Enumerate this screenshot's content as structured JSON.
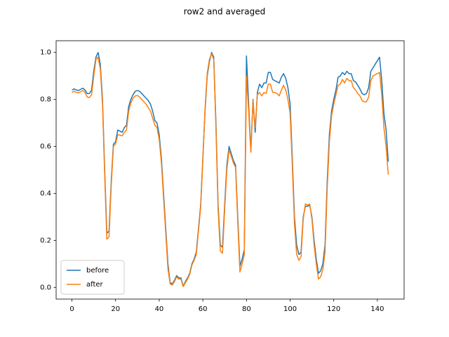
{
  "chart_data": {
    "type": "line",
    "title": "row2 and averaged",
    "x": [
      0,
      1,
      2,
      3,
      4,
      5,
      6,
      7,
      8,
      9,
      10,
      11,
      12,
      13,
      14,
      15,
      16,
      17,
      18,
      19,
      20,
      21,
      22,
      23,
      24,
      25,
      26,
      27,
      28,
      29,
      30,
      31,
      32,
      33,
      34,
      35,
      36,
      37,
      38,
      39,
      40,
      41,
      42,
      43,
      44,
      45,
      46,
      47,
      48,
      49,
      50,
      51,
      52,
      53,
      54,
      55,
      56,
      57,
      58,
      59,
      60,
      61,
      62,
      63,
      64,
      65,
      66,
      67,
      68,
      69,
      70,
      71,
      72,
      73,
      74,
      75,
      76,
      77,
      78,
      79,
      80,
      81,
      82,
      83,
      84,
      85,
      86,
      87,
      88,
      89,
      90,
      91,
      92,
      93,
      94,
      95,
      96,
      97,
      98,
      99,
      100,
      101,
      102,
      103,
      104,
      105,
      106,
      107,
      108,
      109,
      110,
      111,
      112,
      113,
      114,
      115,
      116,
      117,
      118,
      119,
      120,
      121,
      122,
      123,
      124,
      125,
      126,
      127,
      128,
      129,
      130,
      131,
      132,
      133,
      134,
      135,
      136,
      137,
      138,
      139,
      140,
      141,
      142,
      143,
      144,
      145
    ],
    "series": [
      {
        "name": "before",
        "color": "#1f77b4",
        "values": [
          0.84,
          0.845,
          0.84,
          0.838,
          0.843,
          0.848,
          0.84,
          0.825,
          0.825,
          0.84,
          0.92,
          0.98,
          1.0,
          0.95,
          0.8,
          0.5,
          0.23,
          0.24,
          0.45,
          0.61,
          0.62,
          0.67,
          0.665,
          0.66,
          0.68,
          0.69,
          0.77,
          0.8,
          0.82,
          0.835,
          0.838,
          0.835,
          0.825,
          0.815,
          0.805,
          0.795,
          0.78,
          0.75,
          0.71,
          0.7,
          0.65,
          0.55,
          0.4,
          0.25,
          0.1,
          0.02,
          0.015,
          0.03,
          0.05,
          0.04,
          0.04,
          0.005,
          0.025,
          0.04,
          0.06,
          0.1,
          0.12,
          0.15,
          0.25,
          0.35,
          0.55,
          0.75,
          0.9,
          0.96,
          1.0,
          0.98,
          0.7,
          0.35,
          0.18,
          0.17,
          0.35,
          0.52,
          0.6,
          0.57,
          0.54,
          0.52,
          0.3,
          0.09,
          0.12,
          0.16,
          0.985,
          0.78,
          0.58,
          0.8,
          0.66,
          0.83,
          0.865,
          0.85,
          0.87,
          0.87,
          0.915,
          0.915,
          0.885,
          0.88,
          0.875,
          0.87,
          0.895,
          0.91,
          0.89,
          0.85,
          0.78,
          0.55,
          0.3,
          0.18,
          0.14,
          0.15,
          0.3,
          0.345,
          0.345,
          0.35,
          0.3,
          0.2,
          0.12,
          0.06,
          0.07,
          0.1,
          0.18,
          0.45,
          0.65,
          0.75,
          0.8,
          0.84,
          0.895,
          0.9,
          0.915,
          0.905,
          0.92,
          0.91,
          0.91,
          0.88,
          0.875,
          0.86,
          0.845,
          0.825,
          0.82,
          0.825,
          0.85,
          0.92,
          0.935,
          0.95,
          0.965,
          0.98,
          0.88,
          0.74,
          0.67,
          0.535
        ]
      },
      {
        "name": "after",
        "color": "#ff7f0e",
        "values": [
          0.83,
          0.835,
          0.83,
          0.828,
          0.833,
          0.838,
          0.83,
          0.81,
          0.808,
          0.82,
          0.9,
          0.97,
          0.98,
          0.93,
          0.78,
          0.48,
          0.205,
          0.215,
          0.43,
          0.6,
          0.61,
          0.65,
          0.648,
          0.645,
          0.66,
          0.67,
          0.75,
          0.785,
          0.805,
          0.815,
          0.817,
          0.81,
          0.8,
          0.79,
          0.78,
          0.765,
          0.75,
          0.72,
          0.69,
          0.68,
          0.63,
          0.53,
          0.38,
          0.23,
          0.08,
          0.015,
          0.01,
          0.025,
          0.045,
          0.035,
          0.035,
          0.003,
          0.02,
          0.035,
          0.055,
          0.095,
          0.115,
          0.14,
          0.24,
          0.34,
          0.54,
          0.76,
          0.91,
          0.97,
          0.995,
          0.97,
          0.68,
          0.33,
          0.155,
          0.145,
          0.33,
          0.5,
          0.585,
          0.56,
          0.53,
          0.51,
          0.28,
          0.065,
          0.1,
          0.14,
          0.9,
          0.75,
          0.575,
          0.795,
          0.68,
          0.82,
          0.83,
          0.815,
          0.83,
          0.825,
          0.865,
          0.865,
          0.83,
          0.83,
          0.825,
          0.815,
          0.84,
          0.86,
          0.84,
          0.8,
          0.74,
          0.52,
          0.27,
          0.14,
          0.115,
          0.13,
          0.29,
          0.355,
          0.35,
          0.355,
          0.29,
          0.18,
          0.1,
          0.035,
          0.045,
          0.075,
          0.15,
          0.42,
          0.62,
          0.73,
          0.78,
          0.82,
          0.86,
          0.865,
          0.885,
          0.87,
          0.89,
          0.88,
          0.88,
          0.85,
          0.84,
          0.825,
          0.815,
          0.795,
          0.79,
          0.79,
          0.81,
          0.88,
          0.9,
          0.905,
          0.91,
          0.915,
          0.82,
          0.68,
          0.6,
          0.48
        ]
      }
    ],
    "xlim": [
      -7.25,
      152.25
    ],
    "xticks": [
      0,
      20,
      40,
      60,
      80,
      100,
      120,
      140
    ],
    "ylim": [
      -0.05,
      1.05
    ],
    "yticks": [
      {
        "value": 0,
        "label": "0.0"
      },
      0.2,
      0.4,
      0.6,
      0.8,
      {
        "value": 1,
        "label": "1.0"
      }
    ],
    "legend": "lower left"
  }
}
